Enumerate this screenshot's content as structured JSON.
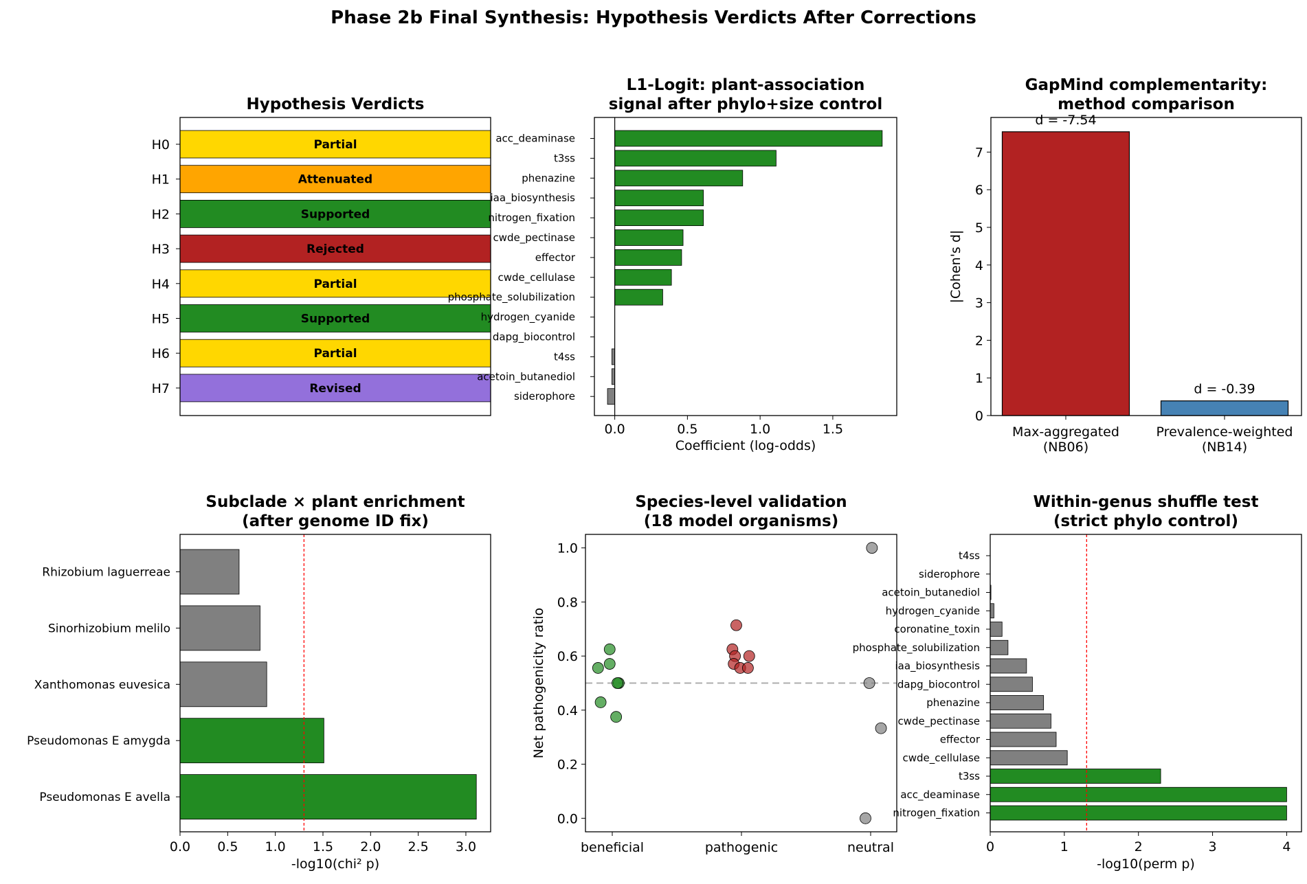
{
  "suptitle": "Phase 2b Final Synthesis: Hypothesis Verdicts After Corrections",
  "colors": {
    "green": "#228B22",
    "gray": "#808080",
    "red": "#B22222",
    "blue": "#4682B4",
    "gold": "#FFD700",
    "orange": "#FFA500",
    "purple": "#9370DB",
    "ref_line": "#ff0000"
  },
  "chart_data": [
    {
      "type": "table",
      "title": "Hypothesis Verdicts",
      "rows": [
        {
          "label": "H0",
          "verdict": "Partial",
          "color": "#FFD700"
        },
        {
          "label": "H1",
          "verdict": "Attenuated",
          "color": "#FFA500"
        },
        {
          "label": "H2",
          "verdict": "Supported",
          "color": "#228B22"
        },
        {
          "label": "H3",
          "verdict": "Rejected",
          "color": "#B22222"
        },
        {
          "label": "H4",
          "verdict": "Partial",
          "color": "#FFD700"
        },
        {
          "label": "H5",
          "verdict": "Supported",
          "color": "#228B22"
        },
        {
          "label": "H6",
          "verdict": "Partial",
          "color": "#FFD700"
        },
        {
          "label": "H7",
          "verdict": "Revised",
          "color": "#9370DB"
        }
      ]
    },
    {
      "type": "bar",
      "orientation": "horizontal",
      "title": [
        "L1-Logit: plant-association",
        "signal after phylo+size control"
      ],
      "xlabel": "Coefficient (log-odds)",
      "xlim": [
        -0.14,
        1.94
      ],
      "xticks": [
        "0.0",
        "0.5",
        "1.0",
        "1.5"
      ],
      "xtick_values": [
        0,
        0.5,
        1.0,
        1.5
      ],
      "categories": [
        "acc_deaminase",
        "t3ss",
        "phenazine",
        "iaa_biosynthesis",
        "nitrogen_fixation",
        "cwde_pectinase",
        "effector",
        "cwde_cellulase",
        "phosphate_solubilization",
        "hydrogen_cyanide",
        "dapg_biocontrol",
        "t4ss",
        "acetoin_butanediol",
        "siderophore"
      ],
      "values": [
        1.84,
        1.11,
        0.88,
        0.61,
        0.61,
        0.47,
        0.46,
        0.39,
        0.33,
        0.0,
        0.0,
        -0.02,
        -0.02,
        -0.05
      ],
      "reference_line_x": 0
    },
    {
      "type": "bar",
      "title": [
        "GapMind complementarity:",
        "method comparison"
      ],
      "ylabel": "|Cohen's d|",
      "ylim": [
        0,
        7.92
      ],
      "yticks": [
        "0",
        "1",
        "2",
        "3",
        "4",
        "5",
        "6",
        "7"
      ],
      "categories": [
        [
          "Max-aggregated",
          "(NB06)"
        ],
        [
          "Prevalence-weighted",
          "(NB14)"
        ]
      ],
      "values": [
        7.54,
        0.39
      ],
      "bar_colors": [
        "#B22222",
        "#4682B4"
      ],
      "annotations": [
        "d = -7.54",
        "d = -0.39"
      ]
    },
    {
      "type": "bar",
      "orientation": "horizontal",
      "title": [
        "Subclade × plant enrichment",
        "(after genome ID fix)"
      ],
      "xlabel": "-log10(chi² p)",
      "xlim": [
        0,
        3.26
      ],
      "xticks": [
        "0.0",
        "0.5",
        "1.0",
        "1.5",
        "2.0",
        "2.5",
        "3.0"
      ],
      "xtick_values": [
        0,
        0.5,
        1.0,
        1.5,
        2.0,
        2.5,
        3.0
      ],
      "categories": [
        "Rhizobium laguerreae",
        "Sinorhizobium melilo",
        "Xanthomonas euvesica",
        "Pseudomonas E amygda",
        "Pseudomonas E avella"
      ],
      "values": [
        0.62,
        0.84,
        0.91,
        1.51,
        3.11
      ],
      "bar_colors": [
        "#808080",
        "#808080",
        "#808080",
        "#228B22",
        "#228B22"
      ],
      "threshold_x": 1.301
    },
    {
      "type": "scatter",
      "title": [
        "Species-level validation",
        "(18 model organisms)"
      ],
      "ylabel": "Net pathogenicity ratio",
      "ylim": [
        -0.05,
        1.05
      ],
      "yticks": [
        "0.0",
        "0.2",
        "0.4",
        "0.6",
        "0.8",
        "1.0"
      ],
      "categories": [
        "beneficial",
        "pathogenic",
        "neutral"
      ],
      "hline_y": 0.5,
      "points": [
        {
          "group": "beneficial",
          "jitter": -0.11,
          "y": 0.556,
          "color": "#228B22"
        },
        {
          "group": "beneficial",
          "jitter": -0.02,
          "y": 0.625,
          "color": "#228B22"
        },
        {
          "group": "beneficial",
          "jitter": -0.02,
          "y": 0.571,
          "color": "#228B22"
        },
        {
          "group": "beneficial",
          "jitter": 0.05,
          "y": 0.5,
          "color": "#228B22"
        },
        {
          "group": "beneficial",
          "jitter": 0.04,
          "y": 0.5,
          "color": "#228B22"
        },
        {
          "group": "beneficial",
          "jitter": -0.09,
          "y": 0.429,
          "color": "#228B22"
        },
        {
          "group": "beneficial",
          "jitter": 0.03,
          "y": 0.375,
          "color": "#228B22"
        },
        {
          "group": "pathogenic",
          "jitter": -0.04,
          "y": 0.714,
          "color": "#B22222"
        },
        {
          "group": "pathogenic",
          "jitter": -0.07,
          "y": 0.625,
          "color": "#B22222"
        },
        {
          "group": "pathogenic",
          "jitter": -0.05,
          "y": 0.6,
          "color": "#B22222"
        },
        {
          "group": "pathogenic",
          "jitter": 0.06,
          "y": 0.6,
          "color": "#B22222"
        },
        {
          "group": "pathogenic",
          "jitter": -0.06,
          "y": 0.571,
          "color": "#B22222"
        },
        {
          "group": "pathogenic",
          "jitter": -0.01,
          "y": 0.556,
          "color": "#B22222"
        },
        {
          "group": "pathogenic",
          "jitter": 0.05,
          "y": 0.556,
          "color": "#B22222"
        },
        {
          "group": "neutral",
          "jitter": 0.01,
          "y": 1.0,
          "color": "#808080"
        },
        {
          "group": "neutral",
          "jitter": -0.01,
          "y": 0.5,
          "color": "#808080"
        },
        {
          "group": "neutral",
          "jitter": 0.08,
          "y": 0.333,
          "color": "#808080"
        },
        {
          "group": "neutral",
          "jitter": -0.04,
          "y": 0.0,
          "color": "#808080"
        }
      ]
    },
    {
      "type": "bar",
      "orientation": "horizontal",
      "title": [
        "Within-genus shuffle test",
        "(strict phylo control)"
      ],
      "xlabel": "-log10(perm p)",
      "xlim": [
        0,
        4.2
      ],
      "xticks": [
        "0",
        "1",
        "2",
        "3",
        "4"
      ],
      "xtick_values": [
        0,
        1,
        2,
        3,
        4
      ],
      "categories": [
        "t4ss",
        "siderophore",
        "acetoin_butanediol",
        "hydrogen_cyanide",
        "coronatine_toxin",
        "phosphate_solubilization",
        "iaa_biosynthesis",
        "dapg_biocontrol",
        "phenazine",
        "cwde_pectinase",
        "effector",
        "cwde_cellulase",
        "t3ss",
        "acc_deaminase",
        "nitrogen_fixation"
      ],
      "values": [
        0.0,
        0.0,
        0.01,
        0.05,
        0.16,
        0.24,
        0.49,
        0.57,
        0.72,
        0.82,
        0.89,
        1.04,
        2.3,
        4.0,
        4.0
      ],
      "bar_colors": [
        "#808080",
        "#808080",
        "#808080",
        "#808080",
        "#808080",
        "#808080",
        "#808080",
        "#808080",
        "#808080",
        "#808080",
        "#808080",
        "#808080",
        "#228B22",
        "#228B22",
        "#228B22"
      ],
      "threshold_x": 1.301
    }
  ]
}
